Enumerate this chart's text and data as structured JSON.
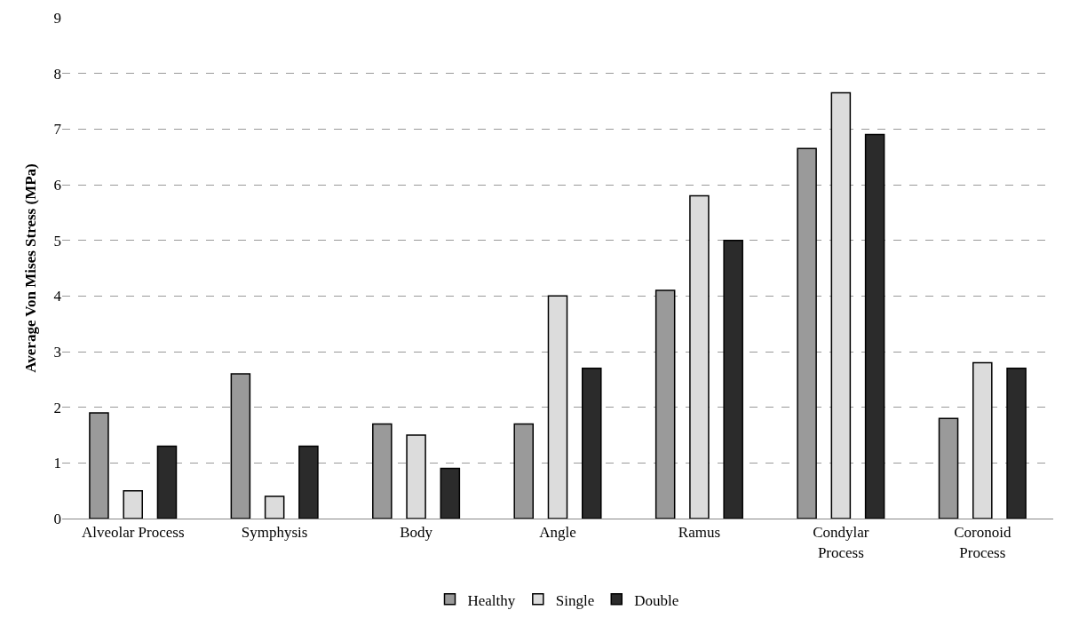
{
  "chart_data": {
    "type": "bar",
    "ylabel": "Average Von Mises Stress (MPa)",
    "categories": [
      "Alveolar Process",
      "Symphysis",
      "Body",
      "Angle",
      "Ramus",
      "Condylar\nProcess",
      "Coronoid\nProcess"
    ],
    "series": [
      {
        "name": "Healthy",
        "color": "#9a9a9a",
        "values": [
          1.9,
          2.6,
          1.7,
          1.7,
          4.1,
          6.65,
          1.8
        ]
      },
      {
        "name": "Single",
        "color": "#dcdcdc",
        "values": [
          0.5,
          0.4,
          1.5,
          4.0,
          5.8,
          7.65,
          2.8
        ]
      },
      {
        "name": "Double",
        "color": "#2b2b2b",
        "values": [
          1.3,
          1.3,
          0.9,
          2.7,
          5.0,
          6.9,
          2.7
        ]
      }
    ],
    "ylim": [
      0,
      9
    ],
    "yticks": [
      0,
      1,
      2,
      3,
      4,
      5,
      6,
      7,
      8,
      9
    ],
    "grid": "y",
    "legend": "bottom"
  }
}
